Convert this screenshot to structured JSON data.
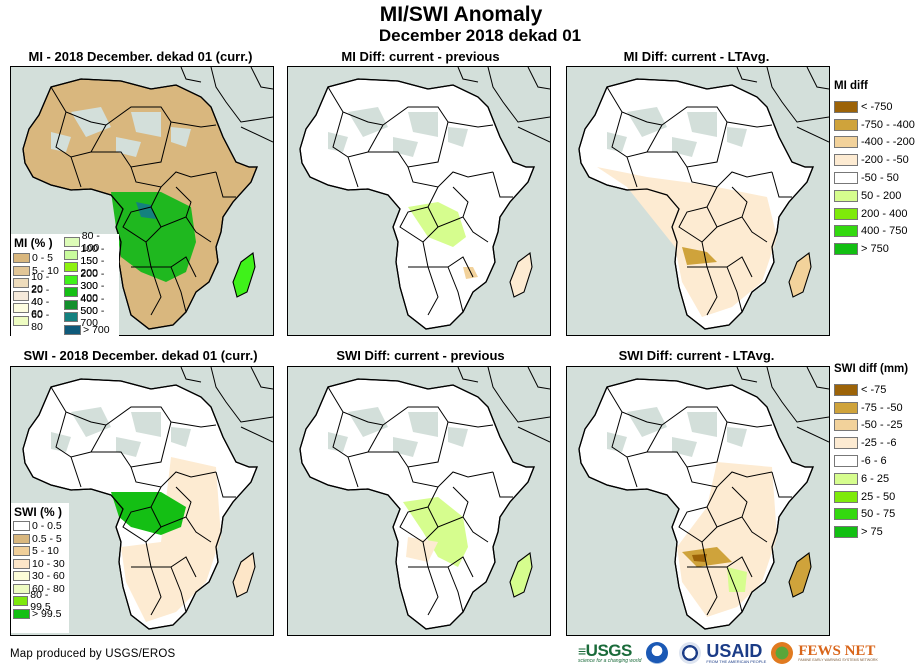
{
  "header": {
    "title": "MI/SWI Anomaly",
    "subtitle": "December 2018 dekad 01"
  },
  "panels": [
    {
      "id": "mi-current",
      "title": "MI - 2018 December. dekad 01 (curr.)",
      "variable": "MI",
      "kind": "current"
    },
    {
      "id": "mi-diff-previous",
      "title": "MI Diff: current - previous",
      "variable": "MI",
      "kind": "diff-previous"
    },
    {
      "id": "mi-diff-ltavg",
      "title": "MI Diff: current - LTAvg.",
      "variable": "MI",
      "kind": "diff-ltavg"
    },
    {
      "id": "swi-current",
      "title": "SWI - 2018 December. dekad 01 (curr.)",
      "variable": "SWI",
      "kind": "current"
    },
    {
      "id": "swi-diff-previous",
      "title": "SWI Diff: current - previous",
      "variable": "SWI",
      "kind": "diff-previous"
    },
    {
      "id": "swi-diff-ltavg",
      "title": "SWI Diff: current - LTAvg.",
      "variable": "SWI",
      "kind": "diff-ltavg"
    }
  ],
  "legends": {
    "mi_current": {
      "title": "MI (% )",
      "col1": [
        {
          "label": "0 - 5",
          "color": "#d9b77e"
        },
        {
          "label": "5 - 10",
          "color": "#e2c697"
        },
        {
          "label": "10 - 20",
          "color": "#eedcbc"
        },
        {
          "label": "20 - 40",
          "color": "#f6eadb"
        },
        {
          "label": "40 - 60",
          "color": "#fdfde0"
        },
        {
          "label": "60 - 80",
          "color": "#eefcc2"
        }
      ],
      "col2": [
        {
          "label": "80 - 100",
          "color": "#ddfcb8"
        },
        {
          "label": "100 - 150",
          "color": "#c9fb9d"
        },
        {
          "label": "150 - 200",
          "color": "#8ef20f"
        },
        {
          "label": "200 - 300",
          "color": "#3ff21a"
        },
        {
          "label": "300 - 400",
          "color": "#15bf15"
        },
        {
          "label": "400 - 500",
          "color": "#138f2c"
        },
        {
          "label": "500 - 700",
          "color": "#14817f"
        },
        {
          "label": "> 700",
          "color": "#0f5a7a"
        }
      ]
    },
    "swi_current": {
      "title": "SWI (% )",
      "items": [
        {
          "label": "0 - 0.5",
          "color": "#ffffff"
        },
        {
          "label": "0.5 - 5",
          "color": "#d9b77e"
        },
        {
          "label": "5 - 10",
          "color": "#f0cf9a"
        },
        {
          "label": "10 - 30",
          "color": "#fde6c8"
        },
        {
          "label": "30 - 60",
          "color": "#fdfdd8"
        },
        {
          "label": "60 - 80",
          "color": "#eefcc2"
        },
        {
          "label": "80 - 99.5",
          "color": "#7ee80f"
        },
        {
          "label": "> 99.5",
          "color": "#14bf14"
        }
      ]
    },
    "mi_diff": {
      "title": "MI diff",
      "items": [
        {
          "label": "< -750",
          "color": "#9c6308"
        },
        {
          "label": "-750 - -400",
          "color": "#cfa33b"
        },
        {
          "label": "-400 - -200",
          "color": "#f2d29b"
        },
        {
          "label": "-200 - -50",
          "color": "#fdebd2"
        },
        {
          "label": "-50 - 50",
          "color": "#ffffff"
        },
        {
          "label": "50 - 200",
          "color": "#d6fd8e"
        },
        {
          "label": "200 - 400",
          "color": "#7eea0a"
        },
        {
          "label": "400 - 750",
          "color": "#33d90f"
        },
        {
          "label": "> 750",
          "color": "#12bf12"
        }
      ]
    },
    "swi_diff": {
      "title": "SWI diff (mm)",
      "items": [
        {
          "label": "< -75",
          "color": "#9c6308"
        },
        {
          "label": "-75 - -50",
          "color": "#cfa33b"
        },
        {
          "label": "-50 - -25",
          "color": "#f2d29b"
        },
        {
          "label": "-25 - -6",
          "color": "#fdebd2"
        },
        {
          "label": "-6 - 6",
          "color": "#ffffff"
        },
        {
          "label": "6 - 25",
          "color": "#d6fd8e"
        },
        {
          "label": "25 - 50",
          "color": "#7eea0a"
        },
        {
          "label": "50 - 75",
          "color": "#33d90f"
        },
        {
          "label": "> 75",
          "color": "#12bf12"
        }
      ]
    }
  },
  "footer": {
    "credit": "Map produced by USGS/EROS",
    "logos": [
      {
        "name": "USGS",
        "tagline": "science for a changing world"
      },
      {
        "name": "NOAA"
      },
      {
        "name": "USAID",
        "tagline": "FROM THE AMERICAN PEOPLE"
      },
      {
        "name": "FEWS NET",
        "tagline": "FAMINE EARLY WARNING SYSTEMS NETWORK"
      }
    ]
  },
  "colors": {
    "ocean": "#d3dfda",
    "desert_nodata": "#d3dfda",
    "border": "#000000"
  }
}
